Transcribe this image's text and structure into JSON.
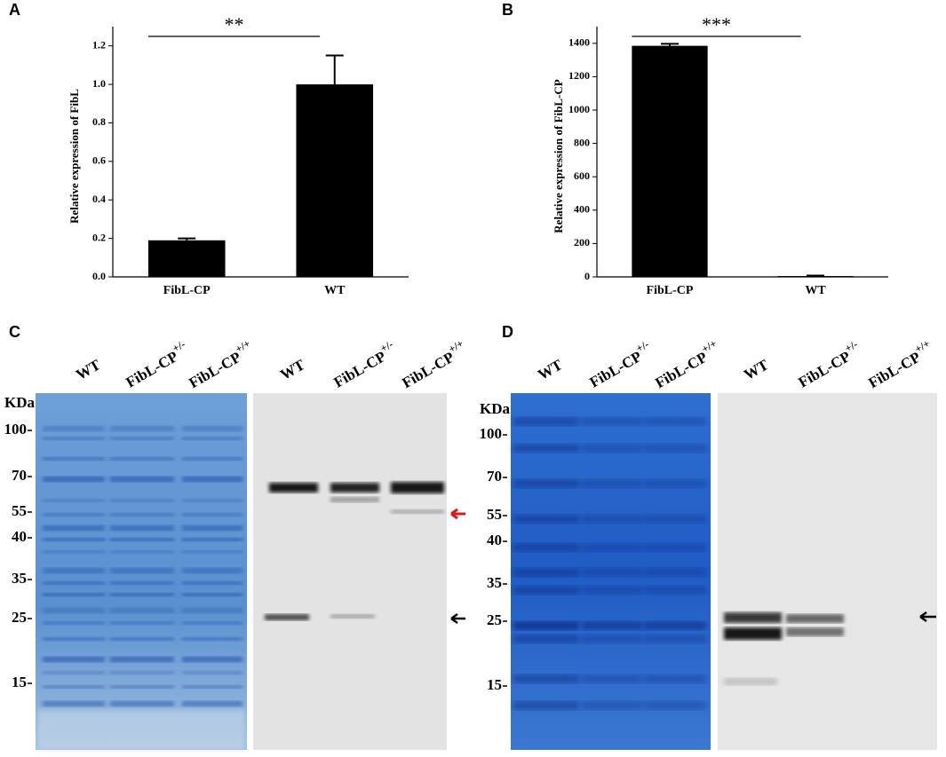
{
  "chart_data": [
    {
      "type": "bar",
      "panel_label": "A",
      "ylabel": "Relative expression of FibL",
      "categories": [
        "FibL-CP",
        "WT"
      ],
      "values": [
        0.19,
        1.0
      ],
      "errors": [
        0.01,
        0.15
      ],
      "color": "#000000",
      "ylim": [
        0,
        1.3
      ],
      "yticks": [
        {
          "value": 0,
          "label": "0.0"
        },
        0.2,
        0.4,
        0.6,
        0.8,
        {
          "value": 1,
          "label": "1.0"
        },
        1.2
      ],
      "significance": "**"
    },
    {
      "type": "bar",
      "panel_label": "B",
      "ylabel": "Relative expression of FibL-CP",
      "categories": [
        "FibL-CP",
        "WT"
      ],
      "values": [
        1385,
        5
      ],
      "errors": [
        12,
        3
      ],
      "color": "#000000",
      "ylim": [
        0,
        1500
      ],
      "yticks": [
        0,
        200,
        400,
        600,
        800,
        1000,
        1200,
        1400
      ],
      "significance": "***"
    }
  ],
  "gels": [
    {
      "panel_label": "C",
      "marker_unit": "KDa",
      "markers": [
        100,
        70,
        55,
        40,
        35,
        25,
        15
      ],
      "lanes": [
        {
          "name": "WT"
        },
        {
          "name": "FibL-CP",
          "sup": "+/-"
        },
        {
          "name": "FibL-CP",
          "sup": "+/+"
        },
        {
          "name": "WT"
        },
        {
          "name": "FibL-CP",
          "sup": "+/-"
        },
        {
          "name": "FibL-CP",
          "sup": "+/+"
        }
      ]
    },
    {
      "panel_label": "D",
      "marker_unit": "KDa",
      "markers": [
        100,
        70,
        55,
        40,
        35,
        25,
        15
      ],
      "lanes": [
        {
          "name": "WT"
        },
        {
          "name": "FibL-CP",
          "sup": "+/-"
        },
        {
          "name": "FibL-CP",
          "sup": "+/+"
        },
        {
          "name": "WT"
        },
        {
          "name": "FibL-CP",
          "sup": "+/-"
        },
        {
          "name": "FibL-CP",
          "sup": "+/+"
        }
      ]
    }
  ]
}
